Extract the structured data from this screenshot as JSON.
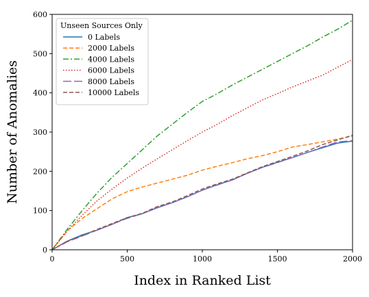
{
  "chart_data": {
    "type": "line",
    "title": "",
    "xlabel": "Index in Ranked List",
    "ylabel": "Number of Anomalies",
    "xlim": [
      0,
      2000
    ],
    "ylim": [
      0,
      600
    ],
    "xticks": [
      0,
      500,
      1000,
      1500,
      2000
    ],
    "yticks": [
      0,
      100,
      200,
      300,
      400,
      500,
      600
    ],
    "grid": false,
    "legend": {
      "title": "Unseen Sources Only",
      "position": "top-left"
    },
    "series": [
      {
        "name": "0 Labels",
        "color": "#1f77b4",
        "style": "solid",
        "x": [
          0,
          100,
          200,
          300,
          400,
          500,
          600,
          700,
          800,
          900,
          1000,
          1100,
          1200,
          1300,
          1400,
          1500,
          1600,
          1700,
          1800,
          1900,
          2000
        ],
        "y": [
          0,
          22,
          38,
          50,
          65,
          82,
          92,
          107,
          120,
          135,
          152,
          166,
          178,
          195,
          210,
          223,
          235,
          248,
          260,
          272,
          277
        ]
      },
      {
        "name": "2000 Labels",
        "color": "#ff7f0e",
        "style": "dashed",
        "x": [
          0,
          100,
          200,
          300,
          400,
          500,
          600,
          700,
          800,
          900,
          1000,
          1100,
          1200,
          1300,
          1400,
          1500,
          1600,
          1700,
          1800,
          1900,
          2000
        ],
        "y": [
          0,
          48,
          80,
          105,
          130,
          148,
          160,
          170,
          180,
          190,
          203,
          213,
          222,
          232,
          240,
          250,
          262,
          268,
          275,
          282,
          290
        ]
      },
      {
        "name": "4000 Labels",
        "color": "#2ca02c",
        "style": "dashdot",
        "x": [
          0,
          100,
          200,
          300,
          400,
          500,
          600,
          700,
          800,
          900,
          1000,
          1100,
          1200,
          1300,
          1400,
          1500,
          1600,
          1700,
          1800,
          1900,
          2000
        ],
        "y": [
          0,
          52,
          100,
          145,
          185,
          220,
          255,
          290,
          320,
          350,
          378,
          398,
          420,
          440,
          460,
          480,
          500,
          520,
          542,
          562,
          585
        ]
      },
      {
        "name": "6000 Labels",
        "color": "#d62728",
        "style": "dotted",
        "x": [
          0,
          100,
          200,
          300,
          400,
          500,
          600,
          700,
          800,
          900,
          1000,
          1100,
          1200,
          1300,
          1400,
          1500,
          1600,
          1700,
          1800,
          1900,
          2000
        ],
        "y": [
          0,
          48,
          88,
          125,
          155,
          183,
          208,
          232,
          255,
          278,
          300,
          320,
          342,
          362,
          382,
          398,
          415,
          430,
          445,
          465,
          485
        ]
      },
      {
        "name": "8000 Labels",
        "color": "#9467bd",
        "style": "longdash",
        "x": [
          0,
          100,
          200,
          300,
          400,
          500,
          600,
          700,
          800,
          900,
          1000,
          1100,
          1200,
          1300,
          1400,
          1500,
          1600,
          1700,
          1800,
          1900,
          2000
        ],
        "y": [
          0,
          20,
          35,
          50,
          65,
          80,
          92,
          108,
          120,
          135,
          152,
          165,
          178,
          195,
          210,
          222,
          235,
          248,
          262,
          275,
          278
        ]
      },
      {
        "name": "10000 Labels",
        "color": "#8c564b",
        "style": "dashed",
        "x": [
          0,
          100,
          200,
          300,
          400,
          500,
          600,
          700,
          800,
          900,
          1000,
          1100,
          1200,
          1300,
          1400,
          1500,
          1600,
          1700,
          1800,
          1900,
          2000
        ],
        "y": [
          0,
          22,
          36,
          52,
          67,
          82,
          93,
          110,
          122,
          138,
          155,
          168,
          180,
          196,
          212,
          225,
          238,
          252,
          268,
          280,
          292
        ]
      }
    ]
  }
}
